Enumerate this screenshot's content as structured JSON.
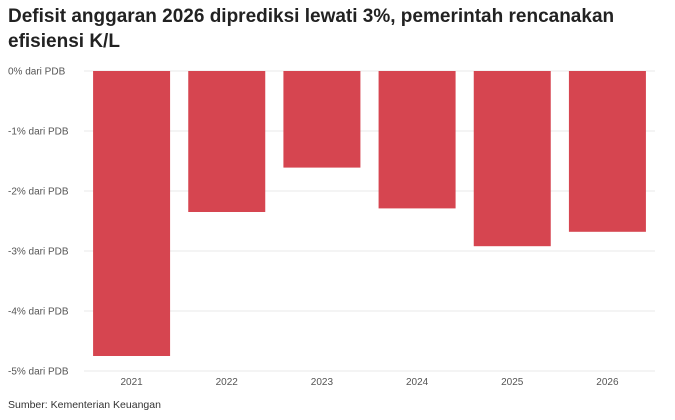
{
  "chart_data": {
    "type": "bar",
    "title": "Defisit anggaran 2026 diprediksi lewati 3%, pemerintah rencanakan efisiensi K/L",
    "categories": [
      "2021",
      "2022",
      "2023",
      "2024",
      "2025",
      "2026"
    ],
    "values": [
      -4.75,
      -2.35,
      -1.61,
      -2.29,
      -2.92,
      -2.68
    ],
    "ylim": [
      -5,
      0
    ],
    "yticks": [
      0,
      -1,
      -2,
      -3,
      -4,
      -5
    ],
    "ytick_labels": [
      "0% dari PDB",
      "-1% dari PDB",
      "-2% dari PDB",
      "-3% dari PDB",
      "-4% dari PDB",
      "-5% dari PDB"
    ],
    "xlabel": "",
    "ylabel": "",
    "grid": true,
    "bar_color": "#d64550",
    "source": "Sumber: Kementerian Keuangan"
  }
}
